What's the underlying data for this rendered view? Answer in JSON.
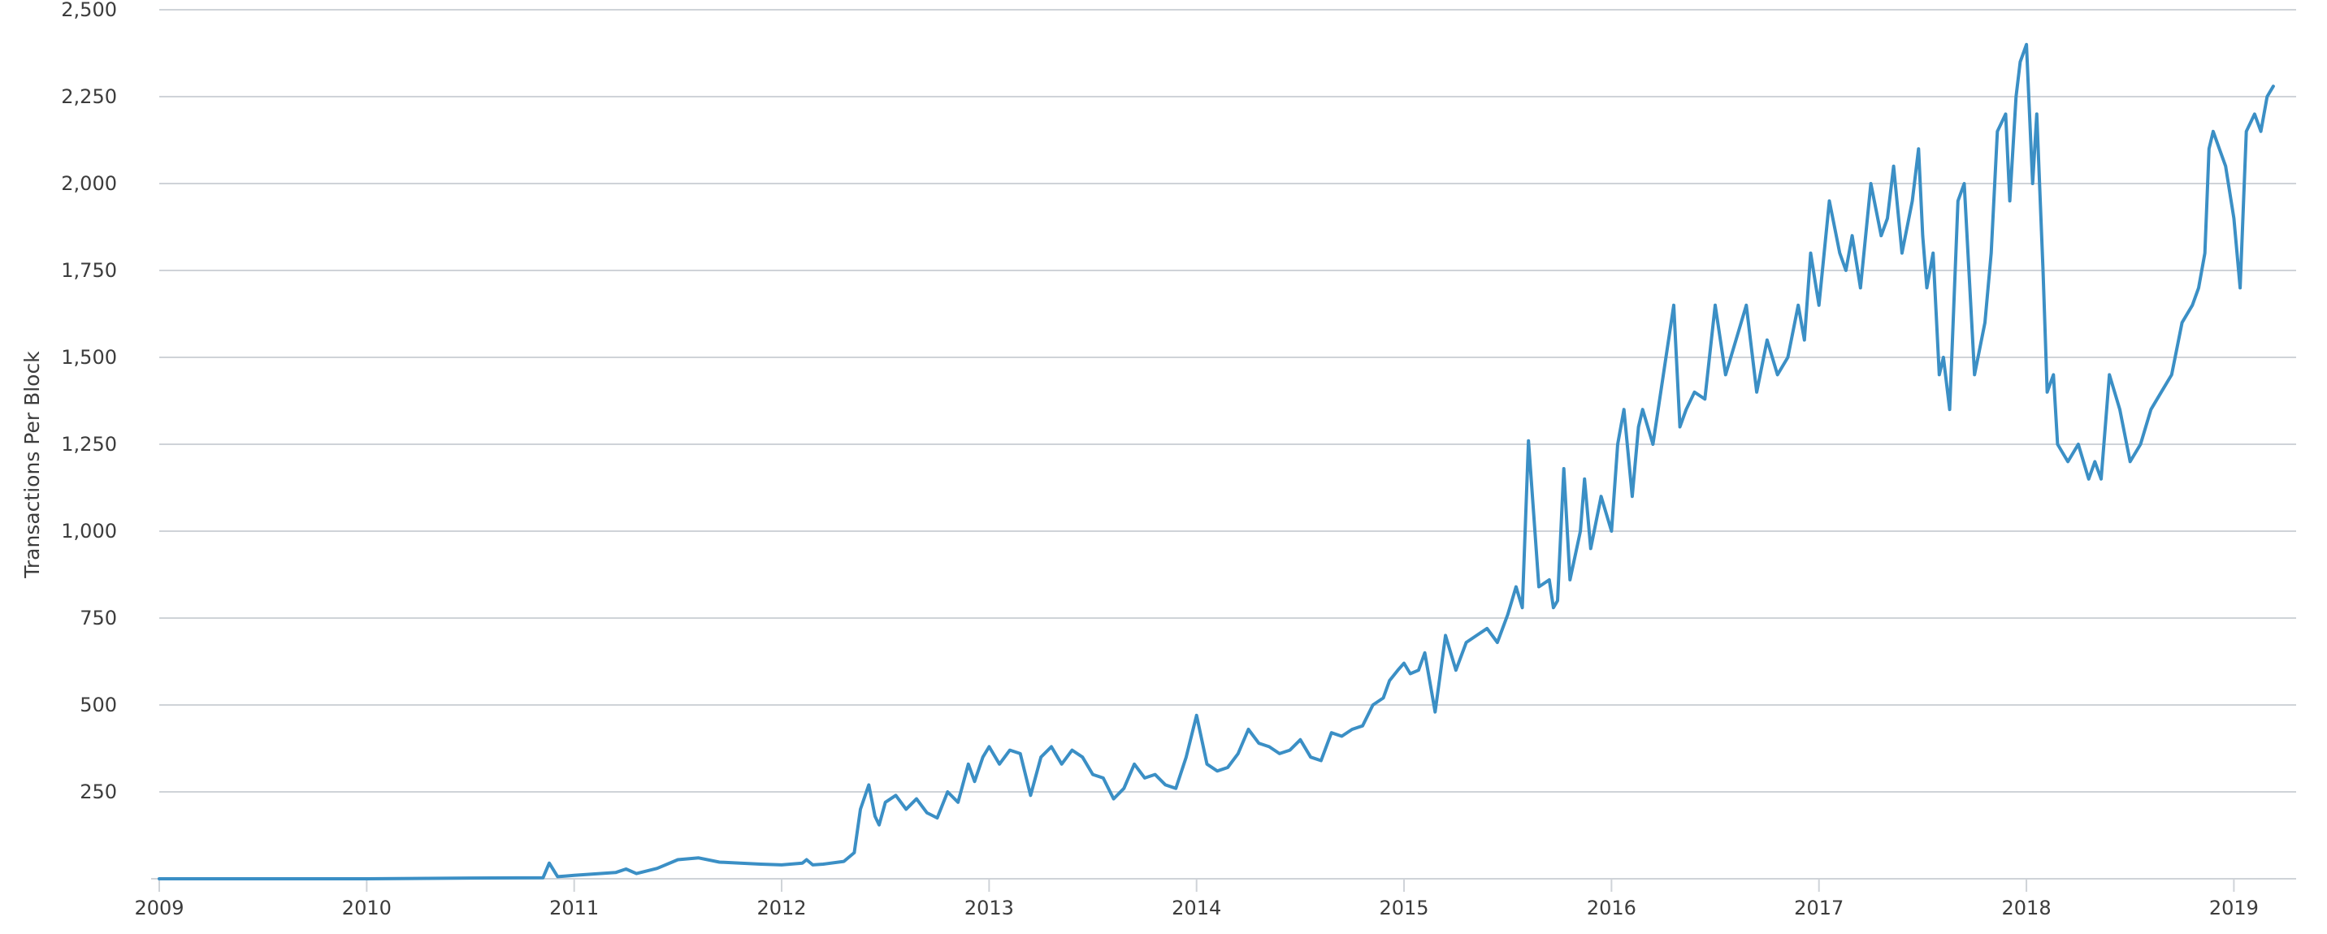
{
  "chart_data": {
    "type": "line",
    "title": "",
    "xlabel": "",
    "ylabel": "Transactions Per Block",
    "xlim": [
      2009.0,
      2019.3
    ],
    "ylim": [
      0,
      2500
    ],
    "grid": true,
    "legend": "none",
    "line_color": "#3b8fc5",
    "y_ticks": [
      {
        "value": 250,
        "label": "250"
      },
      {
        "value": 500,
        "label": "500"
      },
      {
        "value": 750,
        "label": "750"
      },
      {
        "value": 1000,
        "label": "1,000"
      },
      {
        "value": 1250,
        "label": "1,250"
      },
      {
        "value": 1500,
        "label": "1,500"
      },
      {
        "value": 1750,
        "label": "1,750"
      },
      {
        "value": 2000,
        "label": "2,000"
      },
      {
        "value": 2250,
        "label": "2,250"
      },
      {
        "value": 2500,
        "label": "2,500"
      }
    ],
    "x_ticks": [
      {
        "value": 2009,
        "label": "2009"
      },
      {
        "value": 2010,
        "label": "2010"
      },
      {
        "value": 2011,
        "label": "2011"
      },
      {
        "value": 2012,
        "label": "2012"
      },
      {
        "value": 2013,
        "label": "2013"
      },
      {
        "value": 2014,
        "label": "2014"
      },
      {
        "value": 2015,
        "label": "2015"
      },
      {
        "value": 2016,
        "label": "2016"
      },
      {
        "value": 2017,
        "label": "2017"
      },
      {
        "value": 2018,
        "label": "2018"
      },
      {
        "value": 2019,
        "label": "2019"
      }
    ],
    "series": [
      {
        "x": [
          2009.0,
          2009.5,
          2010.0,
          2010.5,
          2010.85,
          2010.88,
          2010.92,
          2010.96,
          2011.0,
          2011.2,
          2011.25,
          2011.3,
          2011.4,
          2011.5,
          2011.6,
          2011.7,
          2011.8,
          2011.9,
          2012.0,
          2012.1,
          2012.12,
          2012.15,
          2012.2,
          2012.3,
          2012.35,
          2012.38,
          2012.42,
          2012.45,
          2012.47,
          2012.5,
          2012.55,
          2012.6,
          2012.65,
          2012.7,
          2012.75,
          2012.8,
          2012.85,
          2012.9,
          2012.93,
          2012.97,
          2013.0,
          2013.05,
          2013.1,
          2013.15,
          2013.2,
          2013.25,
          2013.3,
          2013.35,
          2013.4,
          2013.45,
          2013.5,
          2013.55,
          2013.6,
          2013.65,
          2013.7,
          2013.75,
          2013.8,
          2013.85,
          2013.9,
          2013.95,
          2014.0,
          2014.05,
          2014.1,
          2014.15,
          2014.2,
          2014.25,
          2014.3,
          2014.35,
          2014.4,
          2014.45,
          2014.5,
          2014.55,
          2014.6,
          2014.65,
          2014.7,
          2014.75,
          2014.8,
          2014.85,
          2014.9,
          2014.93,
          2014.97,
          2015.0,
          2015.03,
          2015.07,
          2015.1,
          2015.15,
          2015.2,
          2015.25,
          2015.3,
          2015.35,
          2015.4,
          2015.45,
          2015.5,
          2015.52,
          2015.54,
          2015.57,
          2015.6,
          2015.65,
          2015.7,
          2015.72,
          2015.74,
          2015.77,
          2015.8,
          2015.85,
          2015.87,
          2015.9,
          2015.95,
          2016.0,
          2016.03,
          2016.06,
          2016.1,
          2016.13,
          2016.15,
          2016.2,
          2016.25,
          2016.3,
          2016.33,
          2016.36,
          2016.4,
          2016.45,
          2016.5,
          2016.55,
          2016.6,
          2016.65,
          2016.7,
          2016.75,
          2016.8,
          2016.85,
          2016.9,
          2016.93,
          2016.96,
          2017.0,
          2017.05,
          2017.1,
          2017.13,
          2017.16,
          2017.2,
          2017.25,
          2017.3,
          2017.33,
          2017.36,
          2017.4,
          2017.45,
          2017.48,
          2017.5,
          2017.52,
          2017.55,
          2017.58,
          2017.6,
          2017.63,
          2017.67,
          2017.7,
          2017.75,
          2017.8,
          2017.83,
          2017.86,
          2017.9,
          2017.92,
          2017.95,
          2017.97,
          2018.0,
          2018.03,
          2018.05,
          2018.08,
          2018.1,
          2018.13,
          2018.15,
          2018.2,
          2018.25,
          2018.3,
          2018.33,
          2018.36,
          2018.4,
          2018.45,
          2018.5,
          2018.55,
          2018.6,
          2018.65,
          2018.7,
          2018.75,
          2018.8,
          2018.83,
          2018.86,
          2018.88,
          2018.9,
          2018.93,
          2018.96,
          2019.0,
          2019.03,
          2019.06,
          2019.1,
          2019.13,
          2019.16,
          2019.19
        ],
        "y": [
          0,
          0,
          0,
          2,
          3,
          45,
          6,
          8,
          10,
          18,
          28,
          15,
          30,
          55,
          60,
          48,
          45,
          42,
          40,
          45,
          55,
          40,
          42,
          50,
          75,
          200,
          270,
          180,
          155,
          220,
          240,
          200,
          230,
          190,
          175,
          250,
          220,
          330,
          280,
          350,
          380,
          330,
          370,
          360,
          240,
          350,
          380,
          330,
          370,
          350,
          300,
          290,
          230,
          260,
          330,
          290,
          300,
          270,
          260,
          350,
          470,
          330,
          310,
          320,
          360,
          430,
          390,
          380,
          360,
          370,
          400,
          350,
          340,
          420,
          410,
          430,
          440,
          500,
          520,
          570,
          600,
          620,
          590,
          600,
          650,
          480,
          700,
          600,
          680,
          700,
          720,
          680,
          760,
          800,
          840,
          780,
          1260,
          840,
          860,
          780,
          800,
          1180,
          860,
          1000,
          1150,
          950,
          1100,
          1000,
          1250,
          1350,
          1100,
          1300,
          1350,
          1250,
          1450,
          1650,
          1300,
          1350,
          1400,
          1380,
          1650,
          1450,
          1550,
          1650,
          1400,
          1550,
          1450,
          1500,
          1650,
          1550,
          1800,
          1650,
          1950,
          1800,
          1750,
          1850,
          1700,
          2000,
          1850,
          1900,
          2050,
          1800,
          1950,
          2100,
          1850,
          1700,
          1800,
          1450,
          1500,
          1350,
          1950,
          2000,
          1450,
          1600,
          1800,
          2150,
          2200,
          1950,
          2250,
          2350,
          2400,
          2000,
          2200,
          1750,
          1400,
          1450,
          1250,
          1200,
          1250,
          1150,
          1200,
          1150,
          1450,
          1350,
          1200,
          1250,
          1350,
          1400,
          1450,
          1600,
          1650,
          1700,
          1800,
          2100,
          2150,
          2100,
          2050,
          1900,
          1700,
          2150,
          2200,
          2150,
          2250,
          2280
        ],
        "color": "#3b8fc5"
      }
    ]
  }
}
